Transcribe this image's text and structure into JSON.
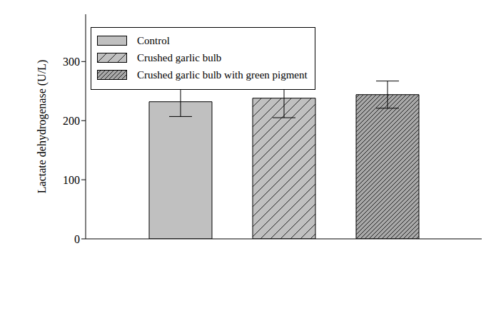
{
  "chart_data": {
    "type": "bar",
    "categories": [
      null
    ],
    "y_label": "Lactate dehydrogenase (U/L)",
    "series": [
      {
        "name": "Control",
        "color": "#c0c0c0",
        "values": [
          232
        ],
        "errors": [
          25
        ]
      },
      {
        "name": "Crushed garlic bulb",
        "color": "#c0c0c0",
        "values": [
          238
        ],
        "errors": [
          33
        ]
      },
      {
        "name": "Crushed garlic bulb with green pigment",
        "color": "#a8a8a8",
        "values": [
          244
        ],
        "errors": [
          23
        ]
      }
    ],
    "ylim": [
      0,
      380
    ],
    "yticks": [
      0,
      100,
      200,
      300
    ],
    "grid": false,
    "legend": "upper left",
    "tick_labels": "y"
  }
}
